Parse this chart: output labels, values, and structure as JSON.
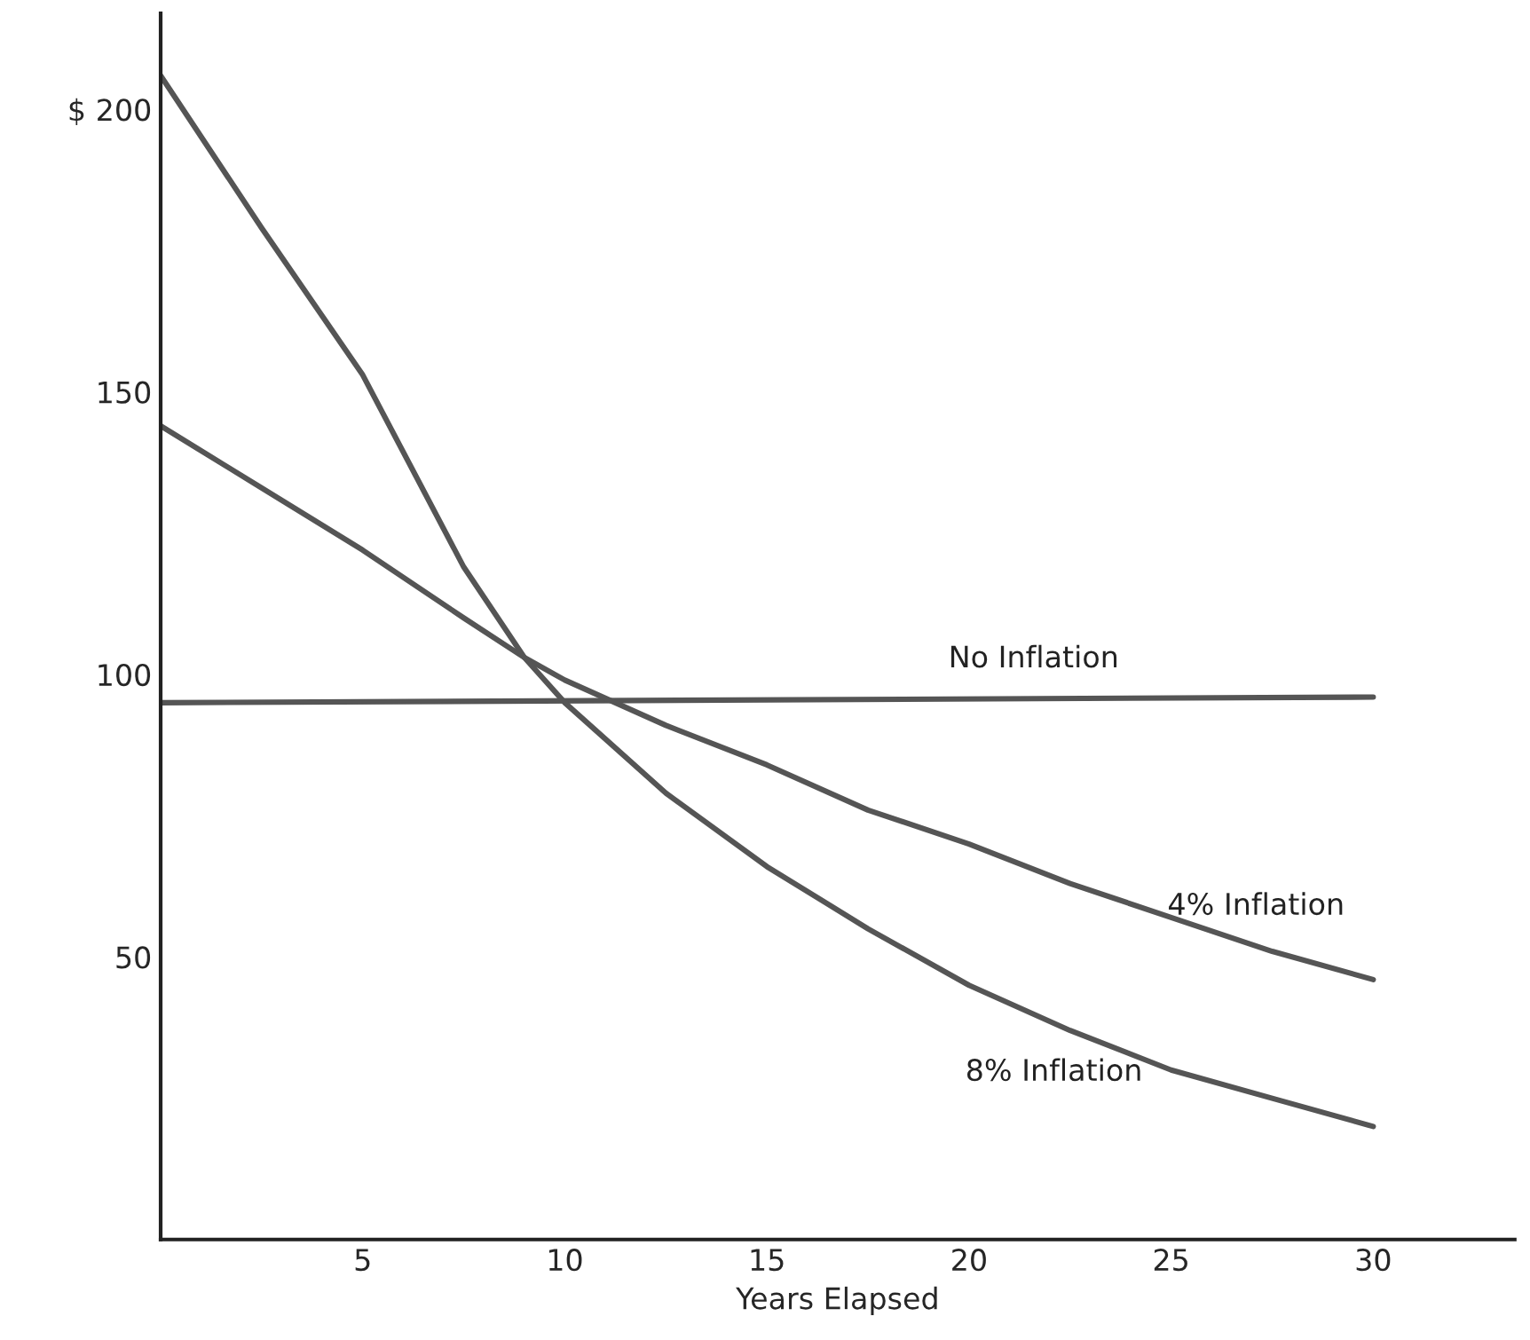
{
  "chart_data": {
    "type": "line",
    "xlabel": "Years Elapsed",
    "xlim": [
      0,
      33.5
    ],
    "ylim": [
      0,
      217
    ],
    "xticks": [
      5,
      10,
      15,
      20,
      25,
      30
    ],
    "yticks": [
      50,
      100,
      150,
      {
        "value": 200,
        "label": "$ 200"
      }
    ],
    "grid": false,
    "marker": "none",
    "line_style": "solid",
    "series": [
      {
        "name": "No Inflation",
        "color": "#555555",
        "x": [
          0,
          30
        ],
        "values": [
          95,
          96
        ]
      },
      {
        "name": "4% Inflation",
        "color": "#555555",
        "x": [
          0,
          2.5,
          5,
          7.5,
          9,
          10,
          12.5,
          15,
          17.5,
          20,
          22.5,
          25,
          27.5,
          30
        ],
        "values": [
          144,
          133,
          122,
          110,
          103,
          99,
          91,
          84,
          76,
          70,
          63,
          57,
          51,
          46
        ]
      },
      {
        "name": "8% Inflation",
        "color": "#555555",
        "x": [
          0,
          2.5,
          5,
          7.5,
          9,
          10,
          12.5,
          15,
          17.5,
          20,
          22.5,
          25,
          27.5,
          30
        ],
        "values": [
          206,
          179,
          153,
          119,
          103,
          95,
          79,
          66,
          55,
          45,
          37,
          30,
          25,
          20
        ]
      }
    ]
  }
}
